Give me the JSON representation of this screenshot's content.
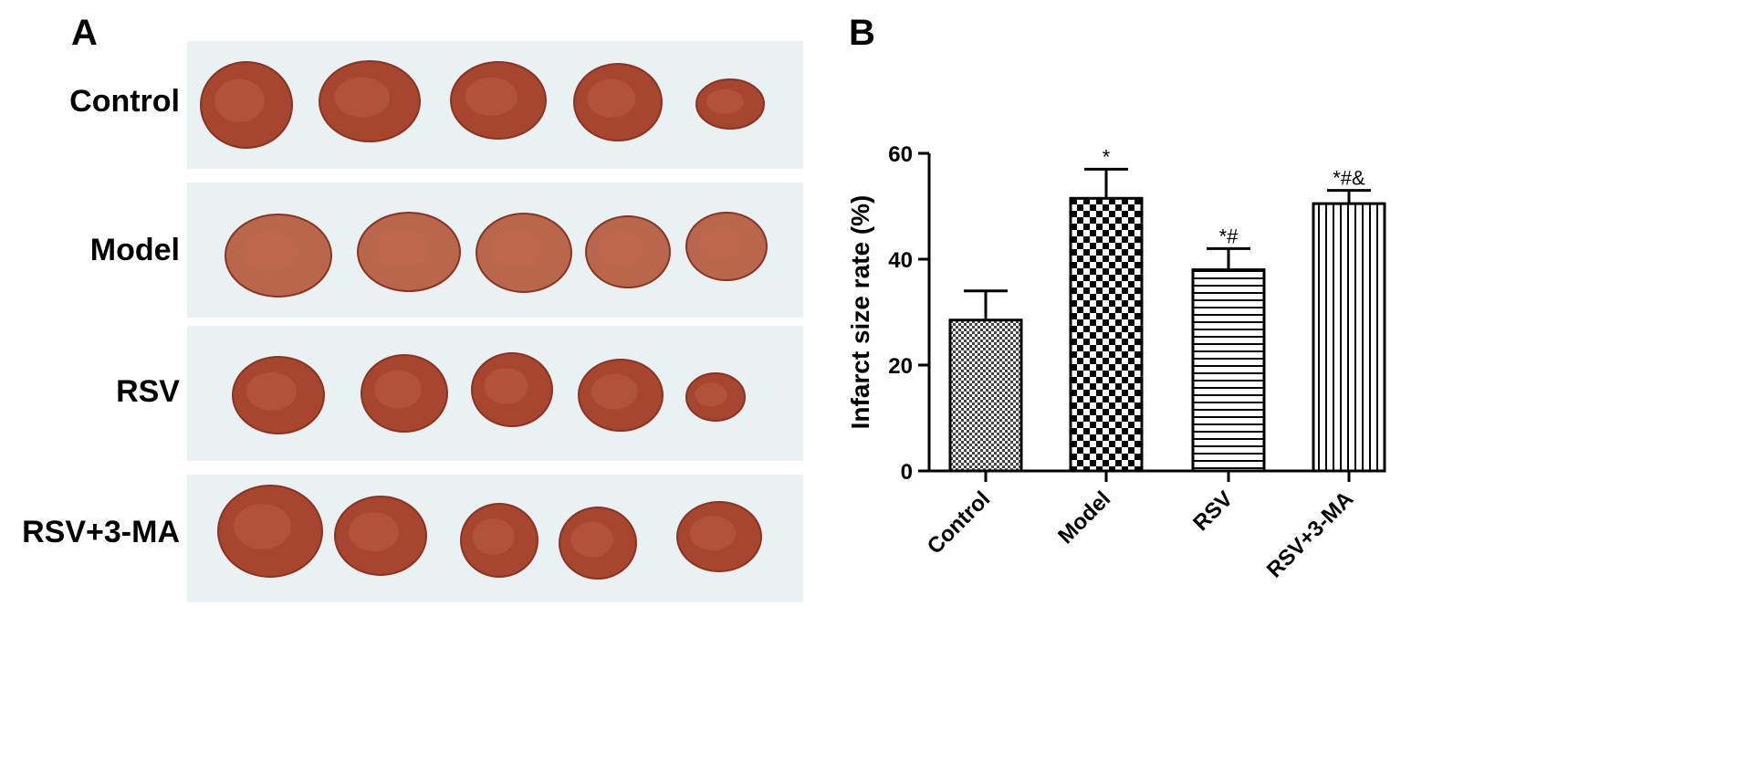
{
  "panels": {
    "a": {
      "letter": "A",
      "rows": [
        {
          "label": "Control",
          "slices": 5
        },
        {
          "label": "Model",
          "slices": 5
        },
        {
          "label": "RSV",
          "slices": 5
        },
        {
          "label": "RSV+3-MA",
          "slices": 5
        }
      ]
    },
    "b": {
      "letter": "B"
    }
  },
  "colors": {
    "photo_background": "#e9f2f2",
    "tissue": "#a8452f",
    "tissue_light": "#c26a52",
    "pale_tissue": "#b8664c",
    "axis": "#000000"
  },
  "chart_data": {
    "type": "bar",
    "categories": [
      "Control",
      "Model",
      "RSV",
      "RSV+3-MA"
    ],
    "values": [
      28.5,
      51.5,
      38,
      50.5
    ],
    "errors": [
      5.5,
      5.5,
      4,
      2.5
    ],
    "significance": [
      "",
      "*",
      "*#",
      "*#&"
    ],
    "patterns": [
      "crosshatch",
      "checker",
      "horizontal-lines",
      "vertical-lines"
    ],
    "ylabel": "Infarct size rate (%)",
    "xlabel": "",
    "ylim": [
      0,
      60
    ],
    "yticks": [
      0,
      20,
      40,
      60
    ],
    "ytick_labels": [
      "0",
      "20",
      "40",
      "60"
    ]
  }
}
